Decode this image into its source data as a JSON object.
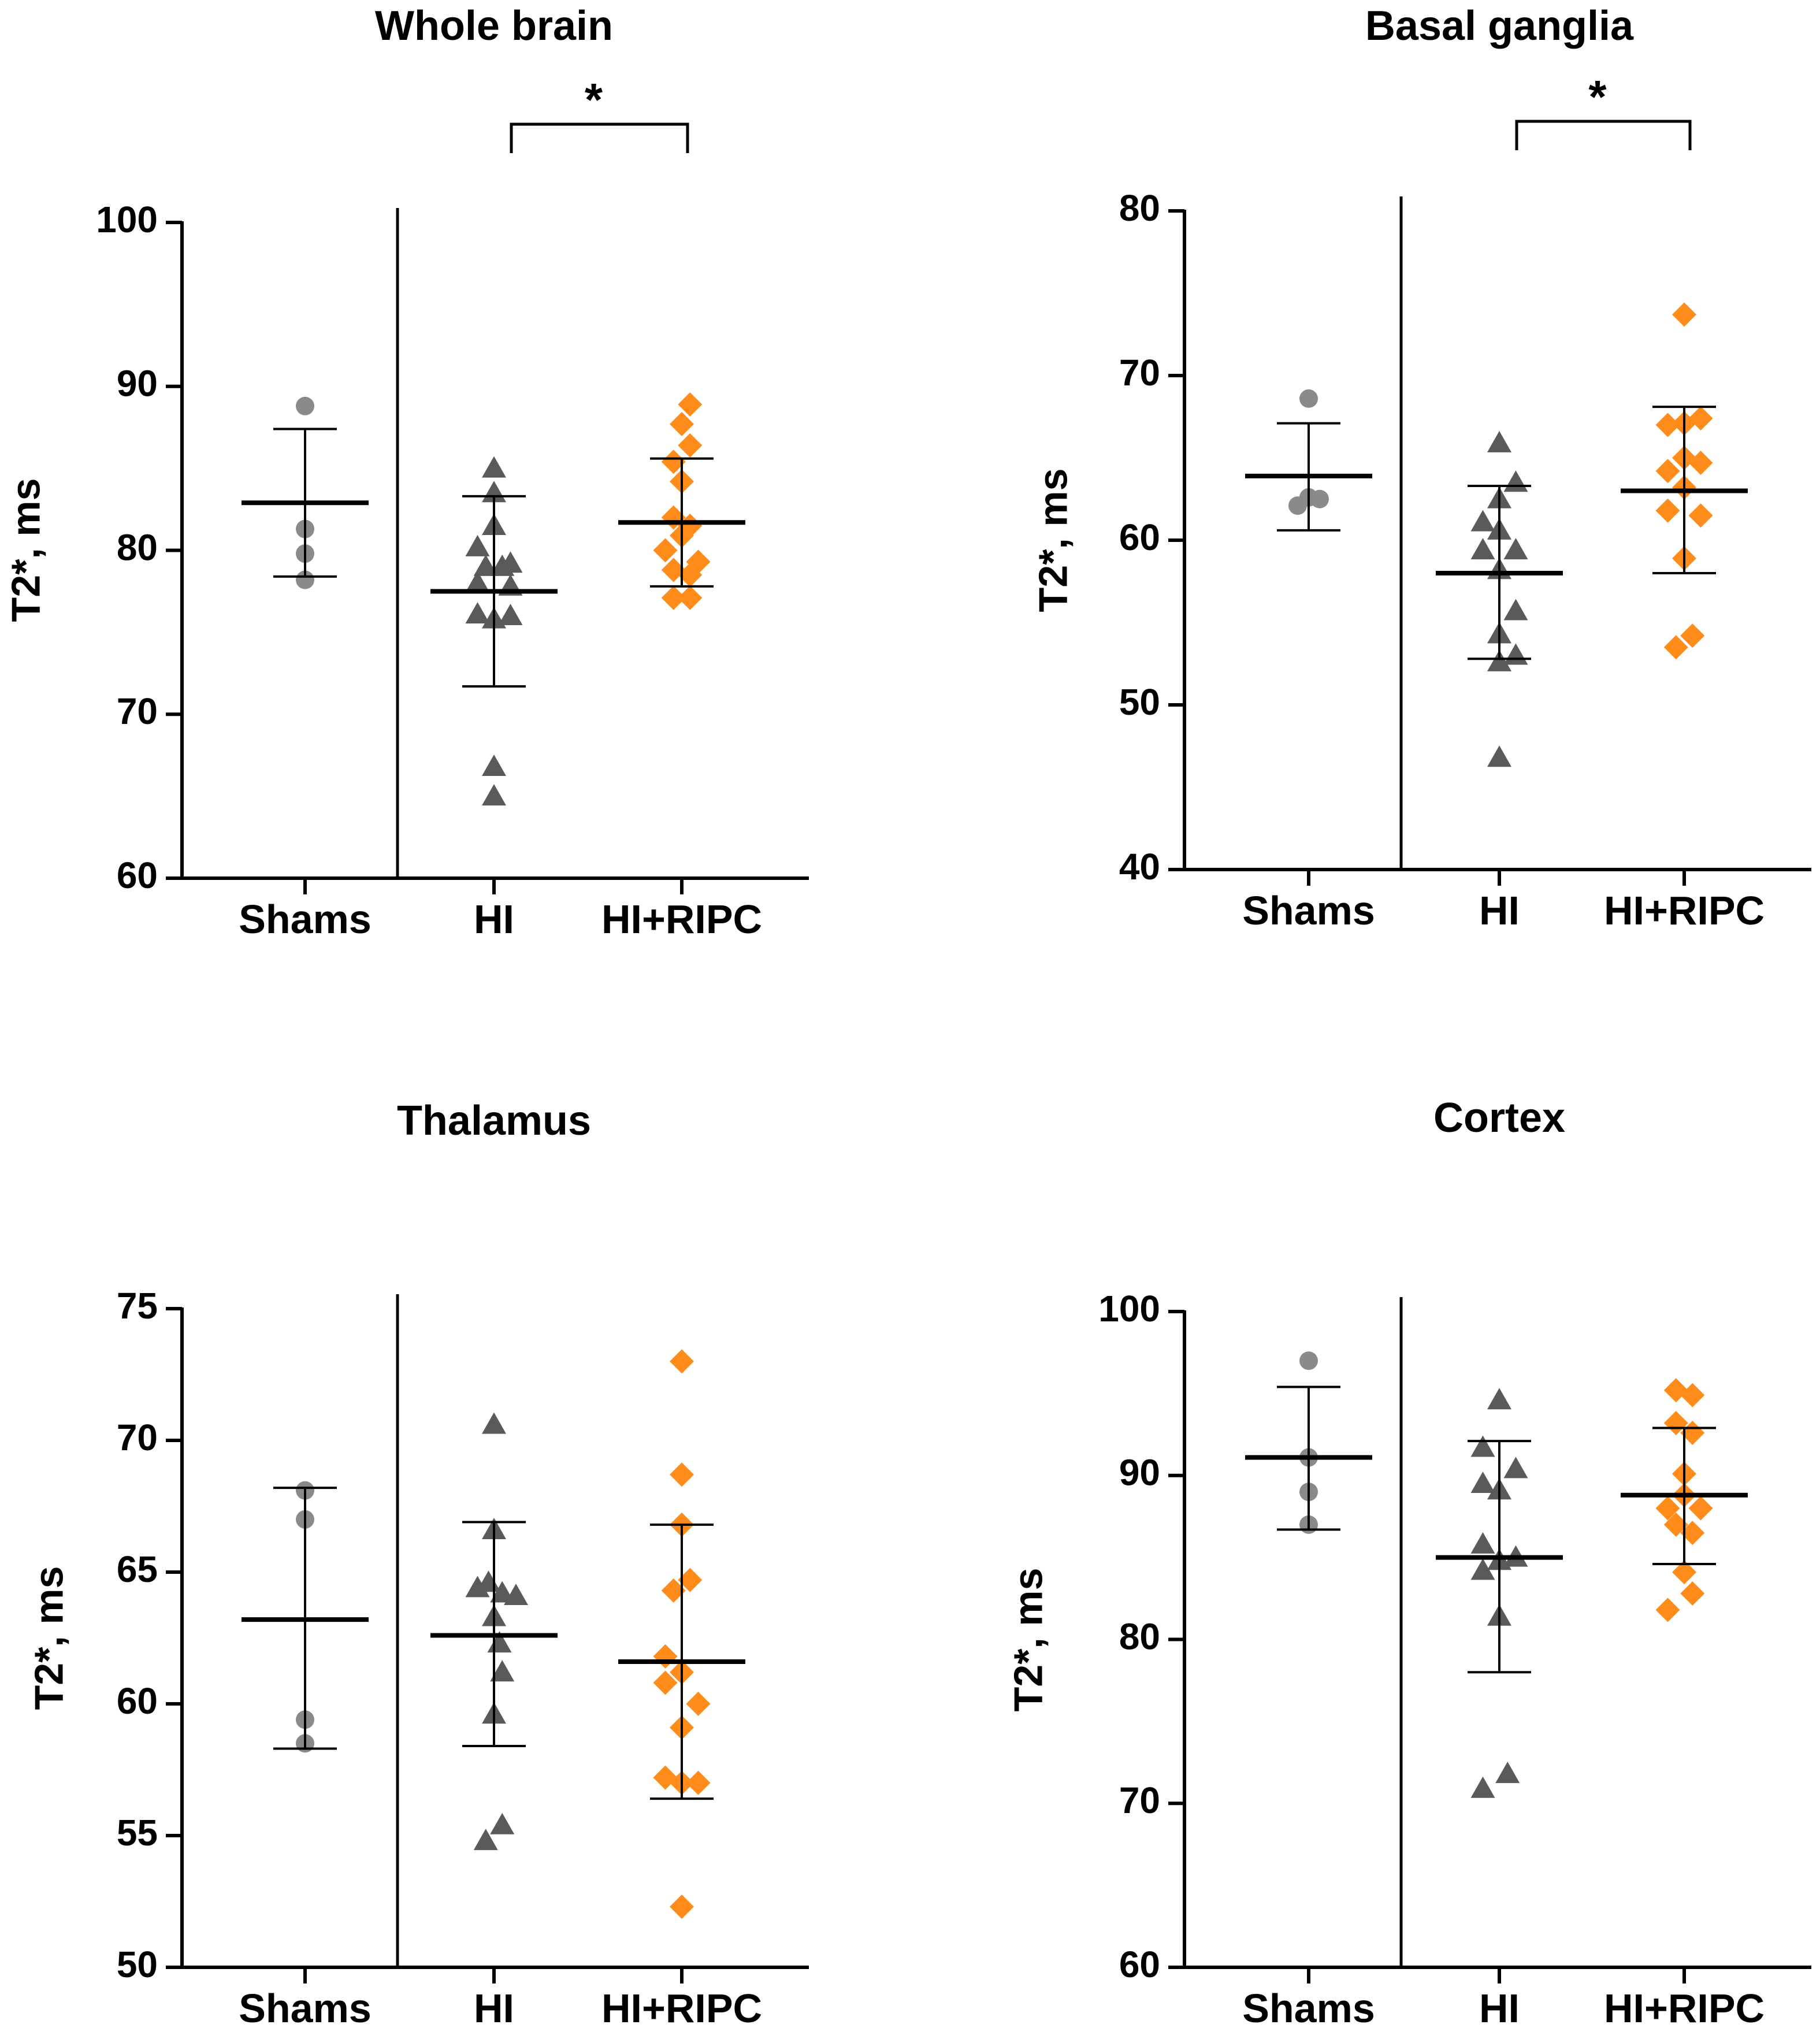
{
  "colors": {
    "shams": "#8a8a8a",
    "hi": "#5a5a5a",
    "hiripc": "#ff8c1a",
    "axis": "#000000"
  },
  "chart_data": [
    {
      "type": "scatter",
      "title": "Whole brain",
      "ylabel": "T2*, ms",
      "xlabel": "",
      "ylim": [
        60,
        100
      ],
      "yticks": [
        60,
        70,
        80,
        90,
        100
      ],
      "categories": [
        "Shams",
        "HI",
        "HI+RIPC"
      ],
      "significance": "*",
      "series": [
        {
          "name": "Shams",
          "marker": "circle",
          "mean": 82.9,
          "error": [
            78.4,
            87.4
          ],
          "points": [
            {
              "dx": 0,
              "y": 88.8
            },
            {
              "dx": 0,
              "y": 79.8
            },
            {
              "dx": 0,
              "y": 78.2
            },
            {
              "dx": 0,
              "y": 81.3
            }
          ]
        },
        {
          "name": "HI",
          "marker": "triangle",
          "mean": 77.5,
          "error": [
            71.7,
            83.3
          ],
          "points": [
            {
              "dx": 0,
              "y": 85
            },
            {
              "dx": 0,
              "y": 83.5
            },
            {
              "dx": 0,
              "y": 81.5
            },
            {
              "dx": -0.3,
              "y": 80.2
            },
            {
              "dx": 0.3,
              "y": 79.2
            },
            {
              "dx": -0.15,
              "y": 79
            },
            {
              "dx": 0.15,
              "y": 79
            },
            {
              "dx": -0.3,
              "y": 78
            },
            {
              "dx": 0.3,
              "y": 77.8
            },
            {
              "dx": -0.3,
              "y": 76.1
            },
            {
              "dx": 0.3,
              "y": 76
            },
            {
              "dx": 0,
              "y": 75.8
            },
            {
              "dx": 0,
              "y": 66.8
            },
            {
              "dx": 0,
              "y": 65
            }
          ]
        },
        {
          "name": "HI+RIPC",
          "marker": "diamond",
          "mean": 81.7,
          "error": [
            77.8,
            85.6
          ],
          "points": [
            {
              "dx": 0.15,
              "y": 88.9
            },
            {
              "dx": 0,
              "y": 87.7
            },
            {
              "dx": 0.15,
              "y": 86.4
            },
            {
              "dx": -0.15,
              "y": 85.4
            },
            {
              "dx": 0,
              "y": 84.2
            },
            {
              "dx": -0.15,
              "y": 82
            },
            {
              "dx": 0.15,
              "y": 81.5
            },
            {
              "dx": 0,
              "y": 80.9
            },
            {
              "dx": -0.3,
              "y": 80
            },
            {
              "dx": 0.3,
              "y": 79.3
            },
            {
              "dx": -0.15,
              "y": 78.8
            },
            {
              "dx": 0.15,
              "y": 78.5
            },
            {
              "dx": -0.15,
              "y": 77.1
            },
            {
              "dx": 0.15,
              "y": 77.1
            }
          ]
        }
      ]
    },
    {
      "type": "scatter",
      "title": "Basal ganglia",
      "ylabel": "T2*, ms",
      "xlabel": "",
      "ylim": [
        40,
        80
      ],
      "yticks": [
        40,
        50,
        60,
        70,
        80
      ],
      "categories": [
        "Shams",
        "HI",
        "HI+RIPC"
      ],
      "significance": "*",
      "series": [
        {
          "name": "Shams",
          "marker": "circle",
          "mean": 63.9,
          "error": [
            60.6,
            67.1
          ],
          "points": [
            {
              "dx": 0,
              "y": 68.6
            },
            {
              "dx": -0.2,
              "y": 62.1
            },
            {
              "dx": 0,
              "y": 62.6
            },
            {
              "dx": 0.2,
              "y": 62.5
            }
          ]
        },
        {
          "name": "HI",
          "marker": "triangle",
          "mean": 58,
          "error": [
            52.8,
            63.3
          ],
          "points": [
            {
              "dx": 0,
              "y": 65.9
            },
            {
              "dx": 0.3,
              "y": 63.5
            },
            {
              "dx": 0,
              "y": 62.5
            },
            {
              "dx": -0.3,
              "y": 61.1
            },
            {
              "dx": 0,
              "y": 60.6
            },
            {
              "dx": -0.3,
              "y": 59.4
            },
            {
              "dx": 0.3,
              "y": 59.4
            },
            {
              "dx": 0,
              "y": 58.2
            },
            {
              "dx": 0.3,
              "y": 55.7
            },
            {
              "dx": 0,
              "y": 54.3
            },
            {
              "dx": 0.3,
              "y": 53
            },
            {
              "dx": 0,
              "y": 52.6
            },
            {
              "dx": 0,
              "y": 46.8
            }
          ]
        },
        {
          "name": "HI+RIPC",
          "marker": "diamond",
          "mean": 63,
          "error": [
            58,
            68.1
          ],
          "points": [
            {
              "dx": 0,
              "y": 73.7
            },
            {
              "dx": -0.3,
              "y": 67
            },
            {
              "dx": 0,
              "y": 67.1
            },
            {
              "dx": 0.3,
              "y": 67.4
            },
            {
              "dx": 0,
              "y": 65
            },
            {
              "dx": -0.3,
              "y": 64.2
            },
            {
              "dx": 0.3,
              "y": 64.7
            },
            {
              "dx": -0.3,
              "y": 61.8
            },
            {
              "dx": 0.3,
              "y": 61.5
            },
            {
              "dx": 0,
              "y": 63.2
            },
            {
              "dx": 0,
              "y": 58.9
            },
            {
              "dx": -0.15,
              "y": 53.5
            },
            {
              "dx": 0.15,
              "y": 54.2
            }
          ]
        }
      ]
    },
    {
      "type": "scatter",
      "title": "Thalamus",
      "ylabel": "T2*, ms",
      "xlabel": "",
      "ylim": [
        50,
        75
      ],
      "yticks": [
        50,
        55,
        60,
        65,
        70,
        75
      ],
      "categories": [
        "Shams",
        "HI",
        "HI+RIPC"
      ],
      "significance": "",
      "series": [
        {
          "name": "Shams",
          "marker": "circle",
          "mean": 63.2,
          "error": [
            58.3,
            68.2
          ],
          "points": [
            {
              "dx": 0,
              "y": 68.1
            },
            {
              "dx": 0,
              "y": 67
            },
            {
              "dx": 0,
              "y": 59.4
            },
            {
              "dx": 0,
              "y": 58.5
            }
          ]
        },
        {
          "name": "HI",
          "marker": "triangle",
          "mean": 62.6,
          "error": [
            58.4,
            66.9
          ],
          "points": [
            {
              "dx": 0,
              "y": 70.6
            },
            {
              "dx": 0,
              "y": 66.6
            },
            {
              "dx": -0.3,
              "y": 64.4
            },
            {
              "dx": -0.1,
              "y": 64.6
            },
            {
              "dx": 0.15,
              "y": 64.2
            },
            {
              "dx": 0.4,
              "y": 64.1
            },
            {
              "dx": 0,
              "y": 63.3
            },
            {
              "dx": 0.1,
              "y": 62.3
            },
            {
              "dx": 0.15,
              "y": 61.2
            },
            {
              "dx": 0,
              "y": 59.6
            },
            {
              "dx": -0.15,
              "y": 54.8
            },
            {
              "dx": 0.15,
              "y": 55.4
            }
          ]
        },
        {
          "name": "HI+RIPC",
          "marker": "diamond",
          "mean": 61.6,
          "error": [
            56.4,
            66.8
          ],
          "points": [
            {
              "dx": 0,
              "y": 73
            },
            {
              "dx": 0,
              "y": 68.7
            },
            {
              "dx": 0,
              "y": 66.8
            },
            {
              "dx": 0.15,
              "y": 64.7
            },
            {
              "dx": -0.15,
              "y": 64.3
            },
            {
              "dx": -0.3,
              "y": 61.8
            },
            {
              "dx": -0.3,
              "y": 60.8
            },
            {
              "dx": 0,
              "y": 61.2
            },
            {
              "dx": 0.3,
              "y": 60
            },
            {
              "dx": 0,
              "y": 59.1
            },
            {
              "dx": -0.3,
              "y": 57.2
            },
            {
              "dx": 0,
              "y": 57
            },
            {
              "dx": 0.3,
              "y": 57
            },
            {
              "dx": 0,
              "y": 52.3
            }
          ]
        }
      ]
    },
    {
      "type": "scatter",
      "title": "Cortex",
      "ylabel": "T2*, ms",
      "xlabel": "",
      "ylim": [
        60,
        100
      ],
      "yticks": [
        60,
        70,
        80,
        90,
        100
      ],
      "categories": [
        "Shams",
        "HI",
        "HI+RIPC"
      ],
      "significance": "",
      "series": [
        {
          "name": "Shams",
          "marker": "circle",
          "mean": 91.1,
          "error": [
            86.7,
            95.4
          ],
          "points": [
            {
              "dx": 0,
              "y": 97
            },
            {
              "dx": 0,
              "y": 91.1
            },
            {
              "dx": 0,
              "y": 89
            },
            {
              "dx": 0,
              "y": 87
            }
          ]
        },
        {
          "name": "HI",
          "marker": "triangle",
          "mean": 85,
          "error": [
            78,
            92.1
          ],
          "points": [
            {
              "dx": 0,
              "y": 94.6
            },
            {
              "dx": -0.3,
              "y": 91.7
            },
            {
              "dx": 0.3,
              "y": 90.4
            },
            {
              "dx": -0.3,
              "y": 89.5
            },
            {
              "dx": 0,
              "y": 89.1
            },
            {
              "dx": -0.3,
              "y": 85.8
            },
            {
              "dx": 0.3,
              "y": 85
            },
            {
              "dx": -0.3,
              "y": 84.2
            },
            {
              "dx": 0,
              "y": 84.8
            },
            {
              "dx": 0,
              "y": 81.4
            },
            {
              "dx": -0.3,
              "y": 70.9
            },
            {
              "dx": 0.15,
              "y": 71.8
            }
          ]
        },
        {
          "name": "HI+RIPC",
          "marker": "diamond",
          "mean": 88.8,
          "error": [
            84.6,
            92.9
          ],
          "points": [
            {
              "dx": -0.15,
              "y": 95.2
            },
            {
              "dx": 0.15,
              "y": 94.9
            },
            {
              "dx": -0.15,
              "y": 93.2
            },
            {
              "dx": 0.15,
              "y": 92.6
            },
            {
              "dx": 0,
              "y": 90.1
            },
            {
              "dx": -0.3,
              "y": 88
            },
            {
              "dx": 0,
              "y": 88.8
            },
            {
              "dx": 0.3,
              "y": 88
            },
            {
              "dx": -0.15,
              "y": 87
            },
            {
              "dx": 0.15,
              "y": 86.5
            },
            {
              "dx": 0,
              "y": 84.1
            },
            {
              "dx": 0.15,
              "y": 82.8
            },
            {
              "dx": -0.3,
              "y": 81.8
            }
          ]
        }
      ]
    }
  ]
}
